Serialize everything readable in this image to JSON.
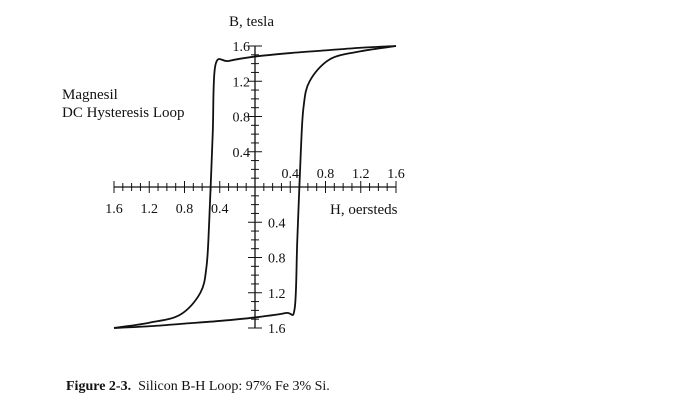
{
  "chart_data": {
    "type": "line",
    "title": "Magnesil",
    "subtitle": "DC Hysteresis Loop",
    "xlabel": "H, oersteds",
    "ylabel": "B, tesla",
    "xlim": [
      -1.6,
      1.6
    ],
    "ylim": [
      -1.6,
      1.6
    ],
    "x_tick_values": [
      -1.6,
      -1.2,
      -0.8,
      -0.4,
      0.4,
      0.8,
      1.2,
      1.6
    ],
    "x_tick_labels": [
      "1.6",
      "1.2",
      "0.8",
      "0.4",
      "0.4",
      "0.8",
      "1.2",
      "1.6"
    ],
    "y_tick_values": [
      1.6,
      1.2,
      0.8,
      0.4,
      -0.4,
      -0.8,
      -1.2,
      -1.6
    ],
    "y_tick_labels": [
      "1.6",
      "1.2",
      "0.8",
      "0.4",
      "0.4",
      "0.8",
      "1.2",
      "1.6"
    ],
    "grid": false,
    "series": [
      {
        "branch": "descending",
        "x": [
          1.6,
          1.2,
          0.8,
          0.4,
          0.0,
          -0.3,
          -0.45,
          -0.48,
          -0.52,
          -0.55,
          -0.62,
          -0.85,
          -1.2,
          -1.6
        ],
        "y": [
          1.6,
          1.58,
          1.55,
          1.52,
          1.48,
          1.43,
          1.38,
          0.6,
          -0.4,
          -0.9,
          -1.2,
          -1.45,
          -1.54,
          -1.6
        ]
      },
      {
        "branch": "ascending",
        "x": [
          -1.6,
          -1.2,
          -0.8,
          -0.4,
          0.0,
          0.35,
          0.45,
          0.48,
          0.52,
          0.55,
          0.62,
          0.85,
          1.2,
          1.6
        ],
        "y": [
          -1.6,
          -1.58,
          -1.55,
          -1.52,
          -1.48,
          -1.43,
          -1.38,
          -0.6,
          0.4,
          0.9,
          1.2,
          1.45,
          1.54,
          1.6
        ]
      }
    ]
  },
  "caption": {
    "label": "Figure 2-3.",
    "text": "Silicon B-H Loop: 97% Fe 3% Si."
  },
  "colors": {
    "ink": "#111111",
    "background": "#ffffff"
  }
}
